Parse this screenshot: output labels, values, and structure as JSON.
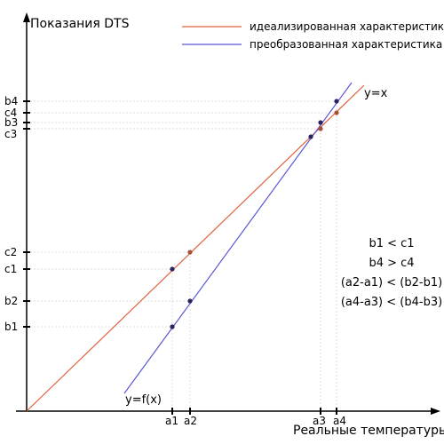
{
  "axes": {
    "y_title": "Показания DTS",
    "x_title": "Реальные температуры"
  },
  "legend": [
    {
      "label": "идеализированная характеристика",
      "color": "#e0613a"
    },
    {
      "label": "преобразованная характеристика",
      "color": "#5a57d6"
    }
  ],
  "line_labels": {
    "ideal": "y=x",
    "transformed": "y=f(x)"
  },
  "x_ticks": [
    "a1",
    "a2",
    "a3",
    "a4"
  ],
  "y_ticks": [
    "b4",
    "c4",
    "b3",
    "c3",
    "c2",
    "c1",
    "b2",
    "b1"
  ],
  "inequalities": [
    "b1 < c1",
    "b4 > c4",
    "(a2-a1) < (b2-b1)",
    "(a4-a3) < (b4-b3)"
  ],
  "colors": {
    "ideal": "#e0613a",
    "transformed": "#5a57d6",
    "axis": "#000000",
    "guide": "#dddddd",
    "point_dark": "#2a2460",
    "point_ideal": "#a4513a"
  }
}
